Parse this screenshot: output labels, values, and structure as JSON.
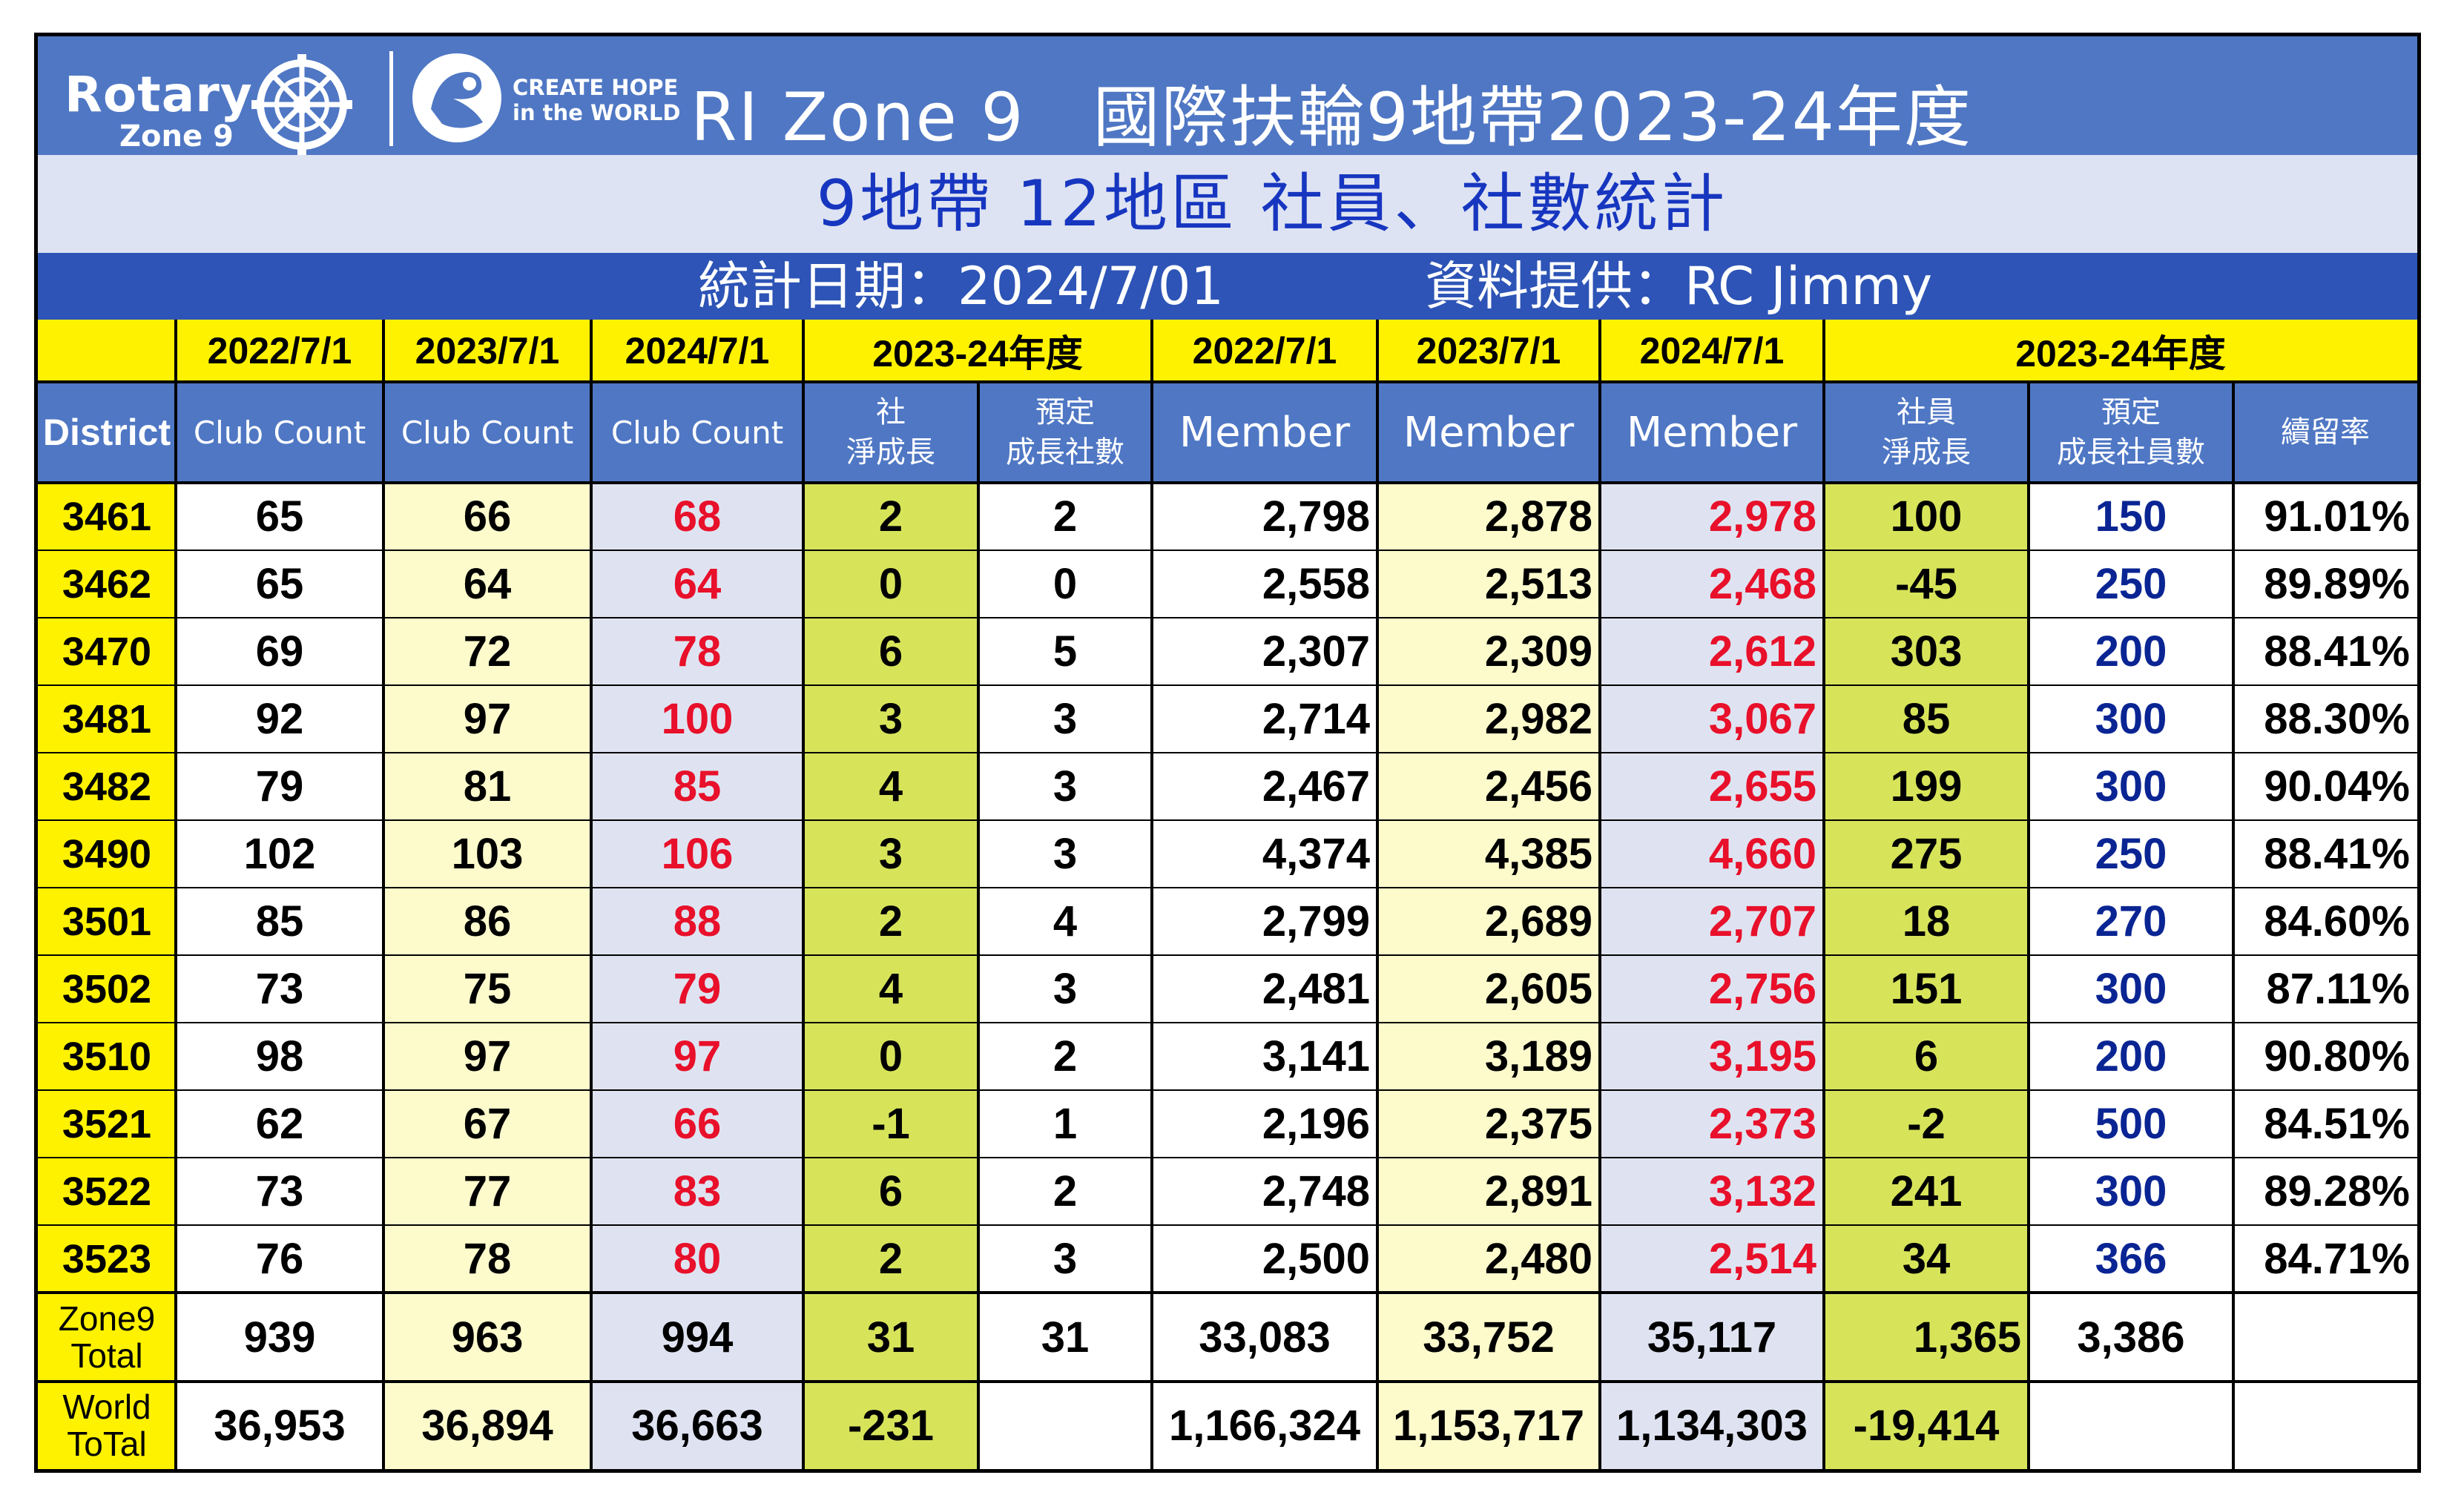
{
  "header": {
    "logo_rotary": "Rotary",
    "logo_zone": "Zone 9",
    "logo_hope_line1": "CREATE HOPE",
    "logo_hope_line2": "in the WORLD",
    "title": "RI Zone 9　國際扶輪9地帶2023-24年度",
    "subtitle": "9地帶 12地區 社員、社數統計",
    "date_label": "統計日期：2024/7/01",
    "source_label": "資料提供：RC Jimmy"
  },
  "colors": {
    "banner": "#4f77c4",
    "subtitle_bg": "#dde3f2",
    "info_bar": "#2d54b6",
    "header_yellow": "#fff200",
    "col_light_yellow": "#fdfbcc",
    "col_light_lavender": "#dfe3f1",
    "col_lime": "#d7e45a",
    "highlight_red": "#e8102a",
    "highlight_blue": "#0a2593"
  },
  "chart_data": {
    "type": "table",
    "header_row1": [
      "",
      "2022/7/1",
      "2023/7/1",
      "2024/7/1",
      "2023-24年度",
      "2022/7/1",
      "2023/7/1",
      "2024/7/1",
      "2023-24年度"
    ],
    "header_row2": [
      "District",
      "Club Count",
      "Club Count",
      "Club Count",
      "社\n淨成長",
      "預定\n成長社數",
      "Member",
      "Member",
      "Member",
      "社員\n淨成長",
      "預定\n成長社員數",
      "續留率"
    ],
    "rows": [
      [
        "3461",
        "65",
        "66",
        "68",
        "2",
        "2",
        "2,798",
        "2,878",
        "2,978",
        "100",
        "150",
        "91.01%"
      ],
      [
        "3462",
        "65",
        "64",
        "64",
        "0",
        "0",
        "2,558",
        "2,513",
        "2,468",
        "-45",
        "250",
        "89.89%"
      ],
      [
        "3470",
        "69",
        "72",
        "78",
        "6",
        "5",
        "2,307",
        "2,309",
        "2,612",
        "303",
        "200",
        "88.41%"
      ],
      [
        "3481",
        "92",
        "97",
        "100",
        "3",
        "3",
        "2,714",
        "2,982",
        "3,067",
        "85",
        "300",
        "88.30%"
      ],
      [
        "3482",
        "79",
        "81",
        "85",
        "4",
        "3",
        "2,467",
        "2,456",
        "2,655",
        "199",
        "300",
        "90.04%"
      ],
      [
        "3490",
        "102",
        "103",
        "106",
        "3",
        "3",
        "4,374",
        "4,385",
        "4,660",
        "275",
        "250",
        "88.41%"
      ],
      [
        "3501",
        "85",
        "86",
        "88",
        "2",
        "4",
        "2,799",
        "2,689",
        "2,707",
        "18",
        "270",
        "84.60%"
      ],
      [
        "3502",
        "73",
        "75",
        "79",
        "4",
        "3",
        "2,481",
        "2,605",
        "2,756",
        "151",
        "300",
        "87.11%"
      ],
      [
        "3510",
        "98",
        "97",
        "97",
        "0",
        "2",
        "3,141",
        "3,189",
        "3,195",
        "6",
        "200",
        "90.80%"
      ],
      [
        "3521",
        "62",
        "67",
        "66",
        "-1",
        "1",
        "2,196",
        "2,375",
        "2,373",
        "-2",
        "500",
        "84.51%"
      ],
      [
        "3522",
        "73",
        "77",
        "83",
        "6",
        "2",
        "2,748",
        "2,891",
        "3,132",
        "241",
        "300",
        "89.28%"
      ],
      [
        "3523",
        "76",
        "78",
        "80",
        "2",
        "3",
        "2,500",
        "2,480",
        "2,514",
        "34",
        "366",
        "84.71%"
      ]
    ],
    "totals": [
      [
        "Zone9\nTotal",
        "939",
        "963",
        "994",
        "31",
        "31",
        "33,083",
        "33,752",
        "35,117",
        "1,365",
        "3,386",
        ""
      ],
      [
        "World\nToTal",
        "36,953",
        "36,894",
        "36,663",
        "-231",
        "",
        "1,166,324",
        "1,153,717",
        "1,134,303",
        "-19,414",
        "",
        ""
      ]
    ]
  }
}
